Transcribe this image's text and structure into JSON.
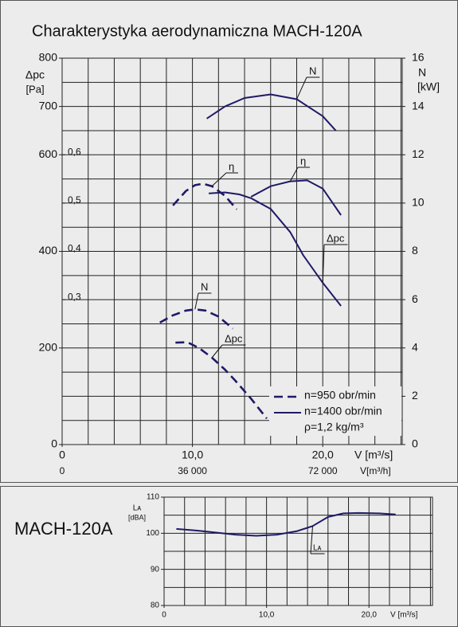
{
  "chart_data": [
    {
      "type": "line",
      "title": "Charakterystyka aerodynamiczna MACH-120A",
      "xlabel": "V [m³/s]",
      "x2label": "V[m³/h]",
      "ylabel": [
        "Δpc",
        "[Pa]"
      ],
      "y2label": [
        "N",
        "[kW]"
      ],
      "xlim": [
        0,
        26.1
      ],
      "xticks": [
        0,
        {
          "value": 10,
          "label": "10,0"
        },
        {
          "value": 20,
          "label": "20,0"
        }
      ],
      "xgrid": [
        2,
        4,
        6,
        8,
        10,
        12,
        14,
        16,
        18,
        20,
        22,
        24,
        26
      ],
      "x2lim": [
        0,
        93960
      ],
      "x2ticks": [
        0,
        {
          "value": 36000,
          "label": "36 000"
        },
        {
          "value": 72000,
          "label": "72 000"
        }
      ],
      "ylim": [
        0,
        800
      ],
      "yticks": [
        0,
        200,
        400,
        600,
        700,
        800
      ],
      "ygrid": [
        50,
        100,
        150,
        250,
        300,
        350,
        450,
        500,
        550,
        650,
        750
      ],
      "y2lim": [
        0,
        16
      ],
      "y2ticks": [
        0,
        2,
        4,
        6,
        8,
        10,
        12,
        14,
        16
      ],
      "y3lim": [
        0,
        0.8
      ],
      "y3ticks": [
        {
          "value": 0.3,
          "label": "0,3"
        },
        {
          "value": 0.4,
          "label": "0,4"
        },
        {
          "value": 0.5,
          "label": "0,5"
        },
        {
          "value": 0.6,
          "label": "0,6"
        }
      ],
      "series": [
        {
          "name": "N",
          "style": "solid",
          "axis": "y2",
          "color": "#1f1a66",
          "x": [
            11.1,
            12.5,
            14,
            16,
            18,
            20,
            21
          ],
          "values": [
            13.5,
            14.0,
            14.35,
            14.5,
            14.3,
            13.6,
            13.0
          ]
        },
        {
          "name": "η",
          "style": "solid",
          "axis": "y3",
          "color": "#1f1a66",
          "x": [
            14.5,
            16,
            17.5,
            18.8,
            20,
            21.4
          ],
          "values": [
            0.513,
            0.535,
            0.545,
            0.547,
            0.53,
            0.475
          ]
        },
        {
          "name": "Δpc",
          "style": "solid",
          "axis": "y",
          "color": "#1f1a66",
          "x": [
            11.25,
            12.5,
            13.6,
            14.5,
            16,
            17.5,
            18.5,
            20,
            21.4
          ],
          "values": [
            520,
            522,
            518,
            510,
            488,
            440,
            392,
            335,
            287
          ]
        },
        {
          "name": "N",
          "style": "dashed",
          "axis": "y2",
          "color": "#1f1a66",
          "x": [
            7.5,
            8.5,
            9.5,
            10.2,
            11,
            12,
            13.1
          ],
          "values": [
            5.05,
            5.35,
            5.55,
            5.6,
            5.55,
            5.3,
            4.8
          ]
        },
        {
          "name": "η",
          "style": "dashed",
          "axis": "y3",
          "color": "#1f1a66",
          "x": [
            8.5,
            9.5,
            10.2,
            10.8,
            11.5,
            12.5,
            13.4
          ],
          "values": [
            0.495,
            0.525,
            0.537,
            0.54,
            0.535,
            0.515,
            0.487
          ]
        },
        {
          "name": "Δpc",
          "style": "dashed",
          "axis": "y",
          "color": "#1f1a66",
          "x": [
            8.7,
            9.6,
            10.5,
            11.5,
            12.5,
            13.3,
            14.5,
            15.7
          ],
          "values": [
            211,
            212,
            200,
            180,
            155,
            132,
            95,
            54
          ]
        }
      ],
      "legend": [
        {
          "name": "n=950 obr/min",
          "style": "dashed"
        },
        {
          "name": "n=1400 obr/min",
          "style": "solid"
        }
      ],
      "note": "ρ=1,2 kg/m³"
    },
    {
      "type": "line",
      "title": "MACH-120A",
      "xlabel": "V [m³/s]",
      "ylabel": [
        "Lᴀ",
        "[dBA]"
      ],
      "xlim": [
        0,
        26.2
      ],
      "xticks": [
        0,
        {
          "value": 10,
          "label": "10,0"
        },
        {
          "value": 20,
          "label": "20,0"
        }
      ],
      "xgrid": [
        2,
        4,
        6,
        8,
        10,
        12,
        14,
        16,
        18,
        20,
        22,
        24,
        26
      ],
      "ylim": [
        80,
        110
      ],
      "yticks": [
        80,
        90,
        100,
        110
      ],
      "ygrid": [
        85,
        95,
        105
      ],
      "series": [
        {
          "name": "Lᴀ",
          "style": "solid",
          "axis": "y",
          "color": "#1f1a66",
          "x": [
            1.2,
            3,
            5,
            7,
            9,
            11,
            13,
            14.5,
            16,
            17.5,
            19,
            21,
            22.6
          ],
          "values": [
            101.2,
            100.8,
            100.2,
            99.6,
            99.3,
            99.6,
            100.6,
            102,
            104.5,
            105.5,
            105.6,
            105.5,
            105.2
          ]
        }
      ]
    }
  ]
}
